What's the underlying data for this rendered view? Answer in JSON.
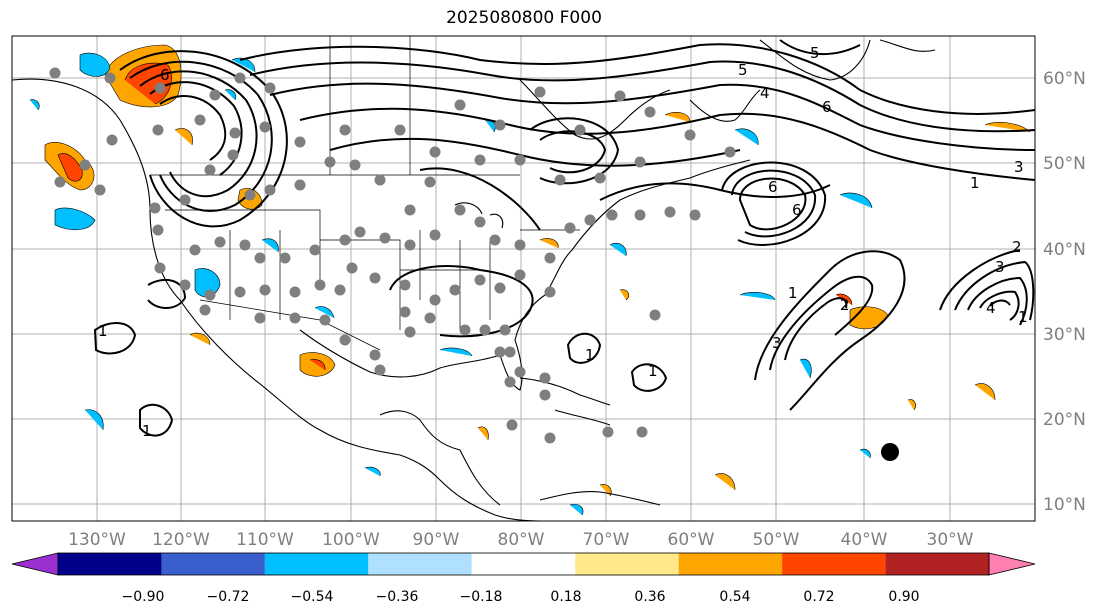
{
  "title": "2025080800 F000",
  "map": {
    "lat_labels": [
      "60°N",
      "50°N",
      "40°N",
      "30°N",
      "20°N",
      "10°N"
    ],
    "lon_labels": [
      "130°W",
      "120°W",
      "110°W",
      "100°W",
      "90°W",
      "80°W",
      "70°W",
      "60°W",
      "50°W",
      "40°W",
      "30°W"
    ],
    "contour_labels": [
      "5",
      "6",
      "4",
      "6",
      "5",
      "6",
      "1",
      "3",
      "6",
      "1",
      "2",
      "3",
      "4",
      "3",
      "1",
      "1",
      "1",
      "1",
      "1",
      "2"
    ]
  },
  "colorbar": {
    "ticks": [
      "−0.90",
      "−0.72",
      "−0.54",
      "−0.36",
      "−0.18",
      "0.18",
      "0.36",
      "0.54",
      "0.72",
      "0.90"
    ],
    "colors": [
      "#9b30d0",
      "#00008b",
      "#3a5fcd",
      "#00bfff",
      "#b0e0ff",
      "#ffffff",
      "#ffe88a",
      "#ffa500",
      "#ff4500",
      "#b22222",
      "#ff80b0"
    ]
  }
}
